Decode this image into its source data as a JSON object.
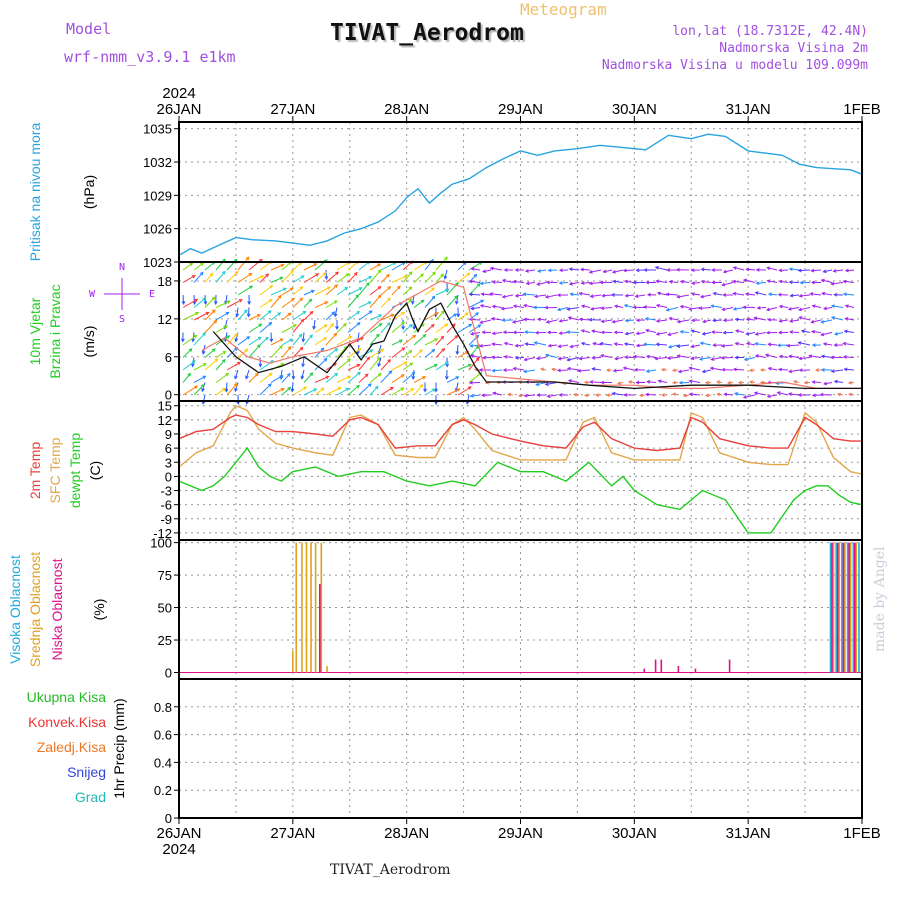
{
  "header": {
    "model_label": "Model",
    "model_name": "wrf-nmm_v3.9.1 e1km",
    "type": "Meteogram",
    "station": "TIVAT_Aerodrom",
    "lonlat": "lon,lat (18.7312E, 42.4N)",
    "elevation": "Nadmorska Visina 2m",
    "model_elevation": "Nadmorska Visina u modelu 109.099m",
    "credit": "made by Angel",
    "footer_station": "TIVAT_Aerodrom"
  },
  "colors": {
    "pressure": "#29a3e0",
    "temp2m": "#e8403a",
    "sfc_temp": "#e2a74a",
    "dewpt": "#22cc22",
    "high_cloud": "#22aadd",
    "mid_cloud": "#e0a020",
    "low_cloud": "#dd1188",
    "total_precip": "#22bb22",
    "conv_precip": "#ee3333",
    "frozen_precip": "#ee7722",
    "snow": "#3344dd",
    "hail": "#22bbbb",
    "wind_purple": "#a020f0",
    "model_label": "#a050e0",
    "lonlat": "#a050e0"
  },
  "chart_data": [
    {
      "type": "line",
      "panel": "pressure",
      "xticks": [
        "26JAN",
        "27JAN",
        "28JAN",
        "29JAN",
        "30JAN",
        "31JAN",
        "1FEB"
      ],
      "year": "2024",
      "ylabel": [
        "Pritisak na nivou mora",
        "(hPa)"
      ],
      "ylim": [
        1023,
        1035.6
      ],
      "yticks": [
        1023,
        1026,
        1029,
        1032,
        1035
      ],
      "series": [
        {
          "name": "Pritisak na nivou mora",
          "x": [
            0,
            0.1,
            0.2,
            0.35,
            0.5,
            0.65,
            0.85,
            1.0,
            1.15,
            1.3,
            1.45,
            1.6,
            1.75,
            1.9,
            2.0,
            2.1,
            2.2,
            2.3,
            2.4,
            2.55,
            2.7,
            2.85,
            3.0,
            3.15,
            3.3,
            3.5,
            3.7,
            3.9,
            4.1,
            4.3,
            4.5,
            4.65,
            4.8,
            5.0,
            5.15,
            5.3,
            5.45,
            5.6,
            5.75,
            5.9,
            6.0
          ],
          "y": [
            1023.6,
            1024.2,
            1023.8,
            1024.5,
            1025.2,
            1025.0,
            1024.9,
            1024.7,
            1024.5,
            1024.9,
            1025.6,
            1026.0,
            1026.6,
            1027.6,
            1028.8,
            1029.6,
            1028.3,
            1029.2,
            1030.0,
            1030.5,
            1031.5,
            1032.3,
            1033.0,
            1032.6,
            1033.0,
            1033.2,
            1033.5,
            1033.3,
            1033.1,
            1034.4,
            1034.1,
            1034.5,
            1034.3,
            1033.0,
            1032.8,
            1032.6,
            1031.8,
            1031.5,
            1031.4,
            1031.3,
            1030.9
          ]
        }
      ]
    },
    {
      "type": "line",
      "panel": "wind",
      "ylabel": [
        "10m Vjetar",
        "Brzina i Pravac",
        "(m/s)"
      ],
      "ylim": [
        -1,
        21
      ],
      "yticks": [
        0,
        6,
        12,
        18
      ],
      "compass": [
        "N",
        "S",
        "W",
        "E"
      ],
      "series": [
        {
          "name": "wind speed",
          "x": [
            0.3,
            0.5,
            0.7,
            0.9,
            1.1,
            1.3,
            1.5,
            1.6,
            1.7,
            1.8,
            1.9,
            2.0,
            2.05,
            2.1,
            2.2,
            2.3,
            2.4,
            2.5,
            2.6,
            2.7,
            2.8,
            3.0,
            3.3,
            3.6,
            4.0,
            4.5,
            5.0,
            5.5,
            6.0
          ],
          "y": [
            10,
            6.0,
            3.5,
            4.5,
            6.0,
            3.5,
            8.0,
            5.5,
            8.0,
            8.5,
            12.5,
            14.5,
            12.0,
            10.0,
            13.5,
            14.5,
            11.0,
            8.0,
            4.5,
            2.0,
            2.0,
            2.0,
            2.0,
            1.5,
            1.0,
            1.5,
            1.5,
            1.0,
            1.0
          ]
        },
        {
          "name": "wind gust",
          "x": [
            0.2,
            0.4,
            0.6,
            0.8,
            1.0,
            1.3,
            1.6,
            1.9,
            2.1,
            2.3,
            2.5,
            2.7,
            3.0,
            3.3,
            3.6,
            4.0,
            4.3,
            4.6,
            5.0,
            5.3,
            5.6,
            6.0
          ],
          "y": [
            7,
            9,
            6,
            5,
            6,
            7,
            9,
            14,
            16,
            18,
            17,
            3,
            2.5,
            2.0,
            1.5,
            1.5,
            1.0,
            1.0,
            1.5,
            2.0,
            1.0,
            1.0
          ]
        }
      ]
    },
    {
      "type": "line",
      "panel": "temperature",
      "ylabel": [
        "2m Temp",
        "SFC Temp",
        "dewpt Temp",
        "(C)"
      ],
      "ylim": [
        -13.5,
        16
      ],
      "yticks": [
        -12,
        -9,
        -6,
        -3,
        0,
        3,
        6,
        9,
        12,
        15
      ],
      "series": [
        {
          "name": "2m Temp",
          "x": [
            0,
            0.15,
            0.3,
            0.45,
            0.5,
            0.6,
            0.7,
            0.85,
            1.0,
            1.2,
            1.35,
            1.5,
            1.6,
            1.75,
            1.9,
            2.1,
            2.25,
            2.4,
            2.5,
            2.6,
            2.75,
            3.0,
            3.2,
            3.4,
            3.55,
            3.65,
            3.8,
            4.0,
            4.2,
            4.4,
            4.5,
            4.6,
            4.75,
            5.0,
            5.2,
            5.35,
            5.5,
            5.6,
            5.75,
            5.9,
            6.0
          ],
          "y": [
            8,
            9.5,
            10,
            12.5,
            13,
            12.5,
            11,
            9.5,
            9.5,
            9,
            8.5,
            12,
            12.5,
            11,
            6,
            6.5,
            6.5,
            11,
            12,
            11,
            9,
            7.5,
            6.5,
            6,
            10.5,
            11.5,
            8,
            6,
            5.5,
            6,
            12.5,
            11.5,
            8,
            6.5,
            6,
            6,
            12.5,
            11,
            8,
            7.5,
            7.5
          ]
        },
        {
          "name": "SFC Temp",
          "x": [
            0,
            0.15,
            0.3,
            0.45,
            0.5,
            0.6,
            0.7,
            0.85,
            1.0,
            1.2,
            1.35,
            1.5,
            1.6,
            1.75,
            1.9,
            2.1,
            2.25,
            2.4,
            2.5,
            2.6,
            2.75,
            3.0,
            3.2,
            3.4,
            3.55,
            3.65,
            3.8,
            4.0,
            4.2,
            4.4,
            4.5,
            4.6,
            4.75,
            5.0,
            5.2,
            5.35,
            5.5,
            5.6,
            5.75,
            5.9,
            6.0
          ],
          "y": [
            2,
            5,
            6.5,
            13.5,
            15,
            14,
            10,
            7,
            6,
            5,
            4.5,
            12.5,
            13,
            11,
            4.5,
            4,
            4,
            11,
            12.5,
            10,
            5.5,
            3.5,
            3.5,
            3.5,
            11.5,
            12.5,
            5,
            3.5,
            3.5,
            3.5,
            13.5,
            12.5,
            5,
            3,
            2.5,
            2.5,
            13.5,
            11.5,
            4,
            1,
            0.5
          ]
        },
        {
          "name": "dewpt Temp",
          "x": [
            0,
            0.1,
            0.2,
            0.3,
            0.4,
            0.5,
            0.6,
            0.7,
            0.8,
            0.9,
            1.0,
            1.2,
            1.4,
            1.6,
            1.8,
            2.0,
            2.2,
            2.4,
            2.6,
            2.8,
            3.0,
            3.2,
            3.4,
            3.6,
            3.8,
            3.9,
            4.0,
            4.2,
            4.4,
            4.6,
            4.8,
            5.0,
            5.2,
            5.4,
            5.5,
            5.6,
            5.7,
            5.8,
            5.9,
            6.0
          ],
          "y": [
            -1,
            -2,
            -3,
            -2,
            0,
            3,
            6,
            2,
            0,
            -1,
            1,
            2,
            0,
            1,
            1,
            -1,
            -2,
            -1,
            -2,
            3,
            1,
            1,
            -1,
            3,
            -2,
            0,
            -3,
            -6,
            -7,
            -3,
            -5,
            -12,
            -12,
            -5,
            -3,
            -2,
            -2,
            -4,
            -5.5,
            -6
          ]
        }
      ]
    },
    {
      "type": "bar",
      "panel": "clouds",
      "ylabel": [
        "Visoka Oblacnost",
        "Srednja Oblacnost",
        "Niska Oblacnost",
        "(%)"
      ],
      "ylim": [
        -5,
        102
      ],
      "yticks": [
        0,
        25,
        50,
        75,
        100
      ],
      "series": [
        {
          "name": "Visoka Oblacnost",
          "x": [
            5.75,
            5.8,
            5.85,
            5.9,
            5.95,
            6.0
          ],
          "values": [
            100,
            100,
            100,
            100,
            100,
            100
          ]
        },
        {
          "name": "Srednja Oblacnost",
          "x": [
            1.0,
            1.03,
            1.08,
            1.12,
            1.16,
            1.2,
            1.25,
            1.3,
            5.75,
            5.8,
            5.85,
            5.9,
            5.95,
            6.0
          ],
          "values": [
            17,
            100,
            100,
            100,
            100,
            100,
            100,
            5,
            100,
            100,
            100,
            100,
            100,
            100
          ]
        },
        {
          "name": "Niska Oblacnost",
          "x": [
            1.25,
            4.1,
            4.2,
            4.25,
            4.4,
            4.55,
            4.85,
            5.75,
            5.8,
            5.85,
            5.9,
            5.95
          ],
          "values": [
            68,
            3,
            10,
            10,
            5,
            3,
            10,
            100,
            100,
            100,
            100,
            100
          ]
        }
      ]
    },
    {
      "type": "line",
      "panel": "precip",
      "ylabel": [
        "1hr Precip (mm)"
      ],
      "ylim": [
        0,
        1
      ],
      "yticks": [
        0,
        0.2,
        0.4,
        0.6,
        0.8
      ],
      "legend": [
        "Ukupna Kisa",
        "Konvek.Kisa",
        "Zaledj.Kisa",
        "Snijeg",
        "Grad"
      ],
      "xticks": [
        "26JAN",
        "27JAN",
        "28JAN",
        "29JAN",
        "30JAN",
        "31JAN",
        "1FEB"
      ],
      "year": "2024",
      "series": [
        {
          "name": "Ukupna Kisa",
          "x": [
            0,
            6
          ],
          "y": [
            0,
            0
          ]
        }
      ]
    }
  ]
}
